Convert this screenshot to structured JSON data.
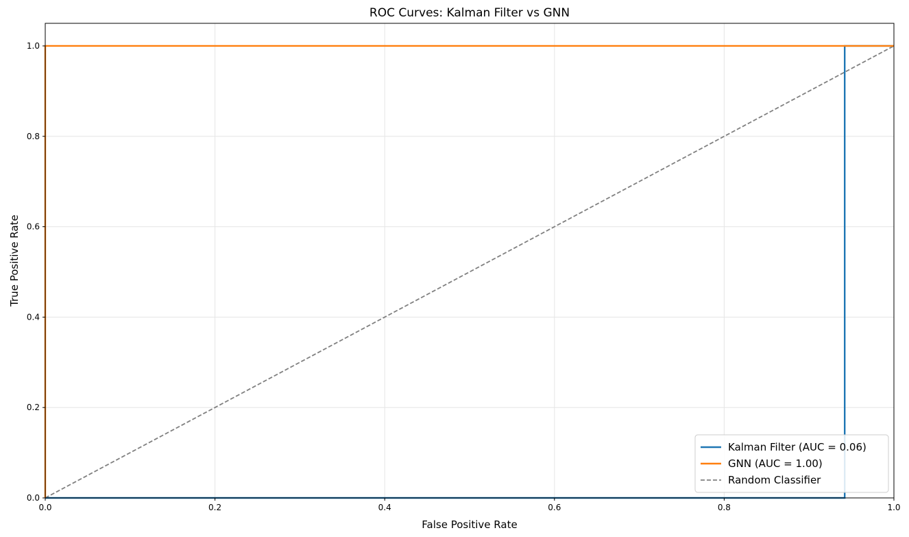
{
  "chart_data": {
    "type": "line",
    "title": "ROC Curves: Kalman Filter vs GNN",
    "xlabel": "False Positive Rate",
    "ylabel": "True Positive Rate",
    "xlim": [
      0.0,
      1.0
    ],
    "ylim": [
      0.0,
      1.05
    ],
    "xticks": [
      0.0,
      0.2,
      0.4,
      0.6,
      0.8,
      1.0
    ],
    "yticks": [
      0.0,
      0.2,
      0.4,
      0.6,
      0.8,
      1.0
    ],
    "xtick_labels": [
      "0.0",
      "0.2",
      "0.4",
      "0.6",
      "0.8",
      "1.0"
    ],
    "ytick_labels": [
      "0.0",
      "0.2",
      "0.4",
      "0.6",
      "0.8",
      "1.0"
    ],
    "grid": true,
    "legend_position": "lower-right",
    "series": [
      {
        "name": "Kalman Filter (AUC = 0.06)",
        "color": "#1f77b4",
        "style": "solid",
        "x": [
          0.0,
          0.942,
          0.942,
          1.0
        ],
        "y": [
          0.0,
          0.0,
          1.0,
          1.0
        ]
      },
      {
        "name": "GNN (AUC = 1.00)",
        "color": "#ff7f0e",
        "style": "solid",
        "x": [
          0.0,
          0.0,
          1.0
        ],
        "y": [
          0.0,
          1.0,
          1.0
        ]
      },
      {
        "name": "Random Classifier",
        "color": "#808080",
        "style": "dashed",
        "x": [
          0.0,
          1.0
        ],
        "y": [
          0.0,
          1.0
        ]
      }
    ]
  }
}
